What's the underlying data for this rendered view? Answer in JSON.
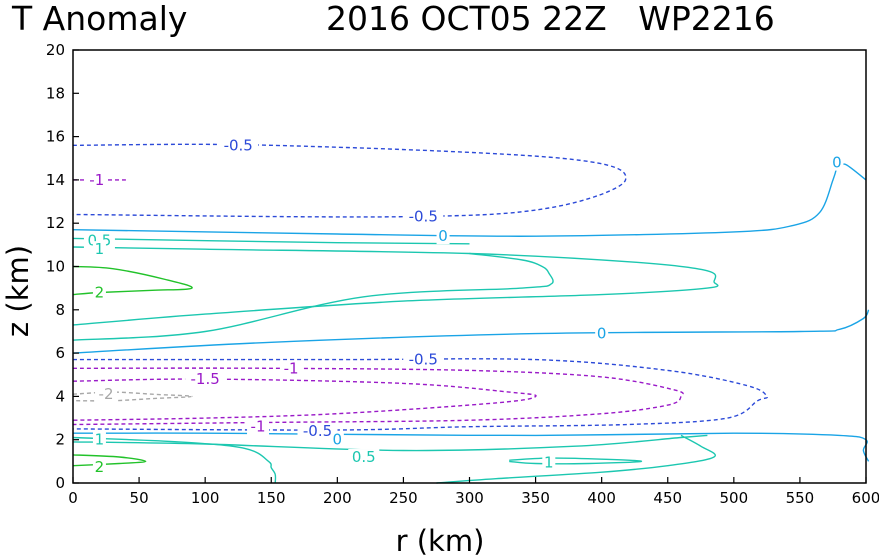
{
  "chart_data": {
    "type": "contour",
    "title_left": "T Anomaly",
    "title_right": "2016 OCT05 22Z   WP2216",
    "xlabel": "r (km)",
    "ylabel": "z (km)",
    "xlim": [
      0,
      600
    ],
    "ylim": [
      0,
      20
    ],
    "xticks": [
      "0",
      "50",
      "100",
      "150",
      "200",
      "250",
      "300",
      "350",
      "400",
      "450",
      "500",
      "550",
      "600"
    ],
    "yticks": [
      "0",
      "2",
      "4",
      "6",
      "8",
      "10",
      "12",
      "14",
      "16",
      "18",
      "20"
    ],
    "colors": {
      "0": "#1aa4e6",
      "0.5": "#1cc7b0",
      "1": "#1cc7b0",
      "2": "#22c22a",
      "-0.5": "#2c4ad8",
      "-1": "#9a1ac8",
      "-1.5": "#9a1ac8",
      "-2": "#a8a8a8"
    },
    "contours": [
      {
        "level": "-0.5",
        "dashed": true,
        "points": [
          [
            0,
            15.6
          ],
          [
            150,
            15.6
          ],
          [
            370,
            15.0
          ],
          [
            418,
            14.0
          ],
          [
            360,
            12.7
          ],
          [
            250,
            12.3
          ],
          [
            0,
            12.4
          ]
        ]
      },
      {
        "level": "-1",
        "dashed": true,
        "points": [
          [
            0,
            14.0
          ],
          [
            40,
            14.0
          ]
        ]
      },
      {
        "level": "0",
        "dashed": false,
        "points": [
          [
            0,
            11.7
          ],
          [
            200,
            11.5
          ],
          [
            350,
            11.4
          ],
          [
            500,
            11.6
          ],
          [
            545,
            11.9
          ],
          [
            565,
            12.5
          ],
          [
            575,
            14.0
          ],
          [
            578,
            14.6
          ]
        ]
      },
      {
        "level": "0",
        "dashed": false,
        "points": [
          [
            600,
            14.0
          ],
          [
            585,
            14.7
          ],
          [
            580,
            14.6
          ]
        ]
      },
      {
        "level": "0.5",
        "dashed": false,
        "points": [
          [
            0,
            11.3
          ],
          [
            200,
            11.1
          ],
          [
            300,
            11.05
          ]
        ]
      },
      {
        "level": "1",
        "dashed": false,
        "points": [
          [
            0,
            10.9
          ],
          [
            100,
            10.8
          ],
          [
            300,
            10.6
          ],
          [
            425,
            10.2
          ],
          [
            480,
            9.8
          ],
          [
            485,
            9.3
          ],
          [
            480,
            9.0
          ],
          [
            400,
            8.7
          ],
          [
            250,
            8.4
          ],
          [
            100,
            7.8
          ],
          [
            0,
            7.3
          ]
        ]
      },
      {
        "level": "0.5",
        "dashed": false,
        "points": [
          [
            300,
            10.6
          ],
          [
            340,
            10.3
          ],
          [
            355,
            10.0
          ],
          [
            360,
            9.7
          ],
          [
            362,
            9.2
          ],
          [
            340,
            9.0
          ],
          [
            220,
            8.6
          ],
          [
            100,
            7.0
          ],
          [
            0,
            6.6
          ]
        ]
      },
      {
        "level": "2",
        "dashed": false,
        "points": [
          [
            0,
            10.0
          ],
          [
            30,
            9.9
          ],
          [
            70,
            9.4
          ],
          [
            90,
            9.0
          ],
          [
            60,
            8.9
          ],
          [
            20,
            8.8
          ],
          [
            0,
            8.7
          ]
        ]
      },
      {
        "level": "0",
        "dashed": false,
        "points": [
          [
            0,
            6.0
          ],
          [
            150,
            6.5
          ],
          [
            350,
            6.9
          ],
          [
            550,
            7.0
          ],
          [
            580,
            7.1
          ],
          [
            598,
            7.6
          ],
          [
            602,
            8.0
          ]
        ]
      },
      {
        "level": "-0.5",
        "dashed": true,
        "points": [
          [
            0,
            5.7
          ],
          [
            200,
            5.7
          ],
          [
            350,
            5.7
          ],
          [
            450,
            5.2
          ],
          [
            510,
            4.5
          ],
          [
            525,
            4.0
          ],
          [
            518,
            3.8
          ],
          [
            495,
            3.0
          ],
          [
            420,
            2.7
          ],
          [
            300,
            2.6
          ],
          [
            200,
            2.45
          ],
          [
            0,
            2.5
          ]
        ]
      },
      {
        "level": "-1",
        "dashed": true,
        "points": [
          [
            0,
            5.3
          ],
          [
            150,
            5.3
          ],
          [
            300,
            5.2
          ],
          [
            400,
            4.9
          ],
          [
            455,
            4.3
          ],
          [
            460,
            4.0
          ],
          [
            450,
            3.6
          ],
          [
            400,
            3.2
          ],
          [
            300,
            2.9
          ],
          [
            150,
            2.8
          ],
          [
            0,
            2.7
          ]
        ]
      },
      {
        "level": "-1.5",
        "dashed": true,
        "points": [
          [
            0,
            4.7
          ],
          [
            100,
            4.8
          ],
          [
            250,
            4.6
          ],
          [
            330,
            4.2
          ],
          [
            350,
            4.0
          ],
          [
            320,
            3.7
          ],
          [
            200,
            3.2
          ],
          [
            100,
            3.0
          ],
          [
            0,
            2.9
          ]
        ]
      },
      {
        "level": "-2",
        "dashed": true,
        "points": [
          [
            0,
            4.1
          ],
          [
            30,
            4.2
          ],
          [
            60,
            4.1
          ],
          [
            90,
            4.0
          ],
          [
            60,
            3.9
          ],
          [
            30,
            3.8
          ],
          [
            0,
            3.8
          ]
        ]
      },
      {
        "level": "0",
        "dashed": false,
        "points": [
          [
            0,
            2.3
          ],
          [
            100,
            2.3
          ],
          [
            200,
            2.25
          ],
          [
            350,
            2.2
          ],
          [
            500,
            2.3
          ],
          [
            580,
            2.2
          ],
          [
            600,
            2.0
          ],
          [
            598,
            1.5
          ],
          [
            602,
            1.0
          ]
        ]
      },
      {
        "level": "1",
        "dashed": false,
        "points": [
          [
            0,
            2.1
          ],
          [
            80,
            1.9
          ],
          [
            130,
            1.6
          ],
          [
            148,
            1.0
          ],
          [
            150,
            0.7
          ],
          [
            153,
            0.4
          ],
          [
            153,
            0
          ]
        ]
      },
      {
        "level": "0.5",
        "dashed": false,
        "points": [
          [
            0,
            1.9
          ],
          [
            100,
            1.8
          ],
          [
            250,
            1.5
          ],
          [
            380,
            1.7
          ],
          [
            460,
            2.1
          ],
          [
            480,
            2.2
          ]
        ]
      },
      {
        "level": "0.5",
        "dashed": false,
        "points": [
          [
            460,
            2.2
          ],
          [
            475,
            1.7
          ],
          [
            485,
            1.2
          ],
          [
            450,
            0.8
          ],
          [
            400,
            0.5
          ],
          [
            320,
            0.2
          ],
          [
            275,
            0
          ]
        ]
      },
      {
        "level": "1",
        "dashed": false,
        "points": [
          [
            330,
            1.05
          ],
          [
            360,
            1.15
          ],
          [
            400,
            1.1
          ],
          [
            430,
            1.0
          ],
          [
            390,
            0.9
          ],
          [
            350,
            0.9
          ],
          [
            330,
            1.0
          ]
        ]
      },
      {
        "level": "2",
        "dashed": false,
        "points": [
          [
            0,
            1.3
          ],
          [
            35,
            1.2
          ],
          [
            55,
            1.0
          ],
          [
            35,
            0.9
          ],
          [
            0,
            0.8
          ]
        ]
      }
    ],
    "labels": [
      {
        "text": "-0.5",
        "x": 125,
        "y": 15.6,
        "level": "-0.5"
      },
      {
        "text": "0",
        "x": 578,
        "y": 14.8,
        "level": "0"
      },
      {
        "text": "-1",
        "x": 18,
        "y": 14.0,
        "level": "-1"
      },
      {
        "text": "-0.5",
        "x": 265,
        "y": 12.3,
        "level": "-0.5"
      },
      {
        "text": "0",
        "x": 280,
        "y": 11.4,
        "level": "0"
      },
      {
        "text": "0.5",
        "x": 20,
        "y": 11.2,
        "level": "0.5"
      },
      {
        "text": "1",
        "x": 20,
        "y": 10.8,
        "level": "1"
      },
      {
        "text": "2",
        "x": 20,
        "y": 8.8,
        "level": "2"
      },
      {
        "text": "0",
        "x": 400,
        "y": 6.9,
        "level": "0"
      },
      {
        "text": "-0.5",
        "x": 265,
        "y": 5.7,
        "level": "-0.5"
      },
      {
        "text": "-1",
        "x": 165,
        "y": 5.3,
        "level": "-1"
      },
      {
        "text": "-1.5",
        "x": 100,
        "y": 4.8,
        "level": "-1.5"
      },
      {
        "text": "-2",
        "x": 25,
        "y": 4.1,
        "level": "-2"
      },
      {
        "text": "-1",
        "x": 140,
        "y": 2.6,
        "level": "-1"
      },
      {
        "text": "-0.5",
        "x": 185,
        "y": 2.4,
        "level": "-0.5"
      },
      {
        "text": "0",
        "x": 200,
        "y": 2.0,
        "level": "0"
      },
      {
        "text": "1",
        "x": 20,
        "y": 2.0,
        "level": "1"
      },
      {
        "text": "0.5",
        "x": 220,
        "y": 1.2,
        "level": "0.5"
      },
      {
        "text": "1",
        "x": 360,
        "y": 0.95,
        "level": "1"
      },
      {
        "text": "2",
        "x": 20,
        "y": 0.75,
        "level": "2"
      }
    ]
  }
}
